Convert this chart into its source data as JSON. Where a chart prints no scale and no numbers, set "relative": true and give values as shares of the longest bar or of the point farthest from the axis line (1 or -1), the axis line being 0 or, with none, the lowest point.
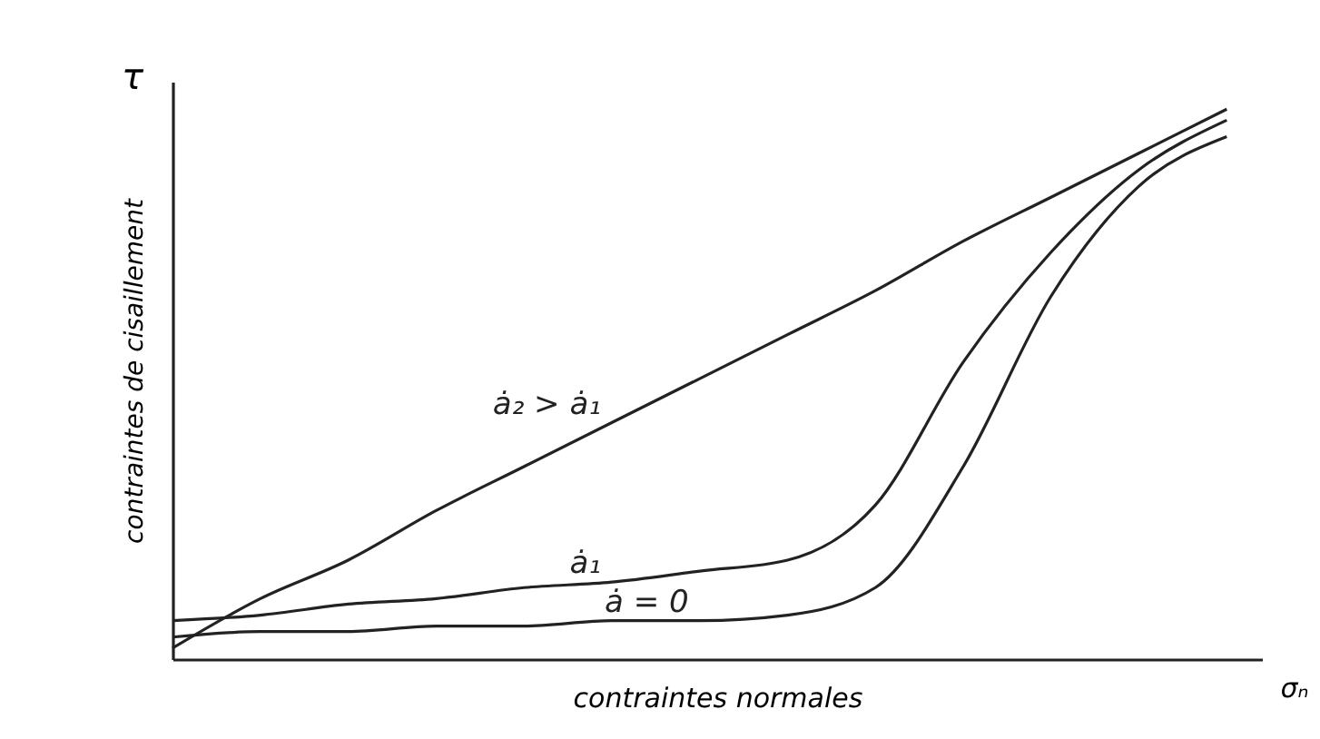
{
  "chart_data": {
    "type": "line",
    "relative": true,
    "xlabel": "contraintes normales",
    "ylabel": "contraintes de cisaillement",
    "annotations": [
      "τ",
      "σₙ"
    ],
    "categories": [
      null,
      null,
      null,
      null,
      null,
      null,
      null,
      null,
      null,
      null,
      null,
      null,
      null
    ],
    "series": [
      {
        "name": "ȧ₂ > ȧ₁",
        "color": "#222222",
        "values": [
          0.02,
          0.11,
          0.18,
          0.27,
          0.35,
          0.43,
          0.51,
          0.59,
          0.67,
          0.76,
          0.84,
          0.92,
          1
        ]
      },
      {
        "name": "ȧ₁",
        "color": "#222222",
        "values": [
          0.07,
          0.08,
          0.1,
          0.11,
          0.13,
          0.14,
          0.16,
          0.18,
          0.28,
          0.54,
          0.74,
          0.89,
          0.98
        ]
      },
      {
        "name": "ȧ = 0",
        "color": "#222222",
        "values": [
          0.04,
          0.05,
          0.05,
          0.06,
          0.06,
          0.07,
          0.07,
          0.08,
          0.13,
          0.35,
          0.66,
          0.86,
          0.95
        ]
      }
    ],
    "grid": false,
    "legend": false,
    "marker": "none",
    "line_style": "solid"
  }
}
